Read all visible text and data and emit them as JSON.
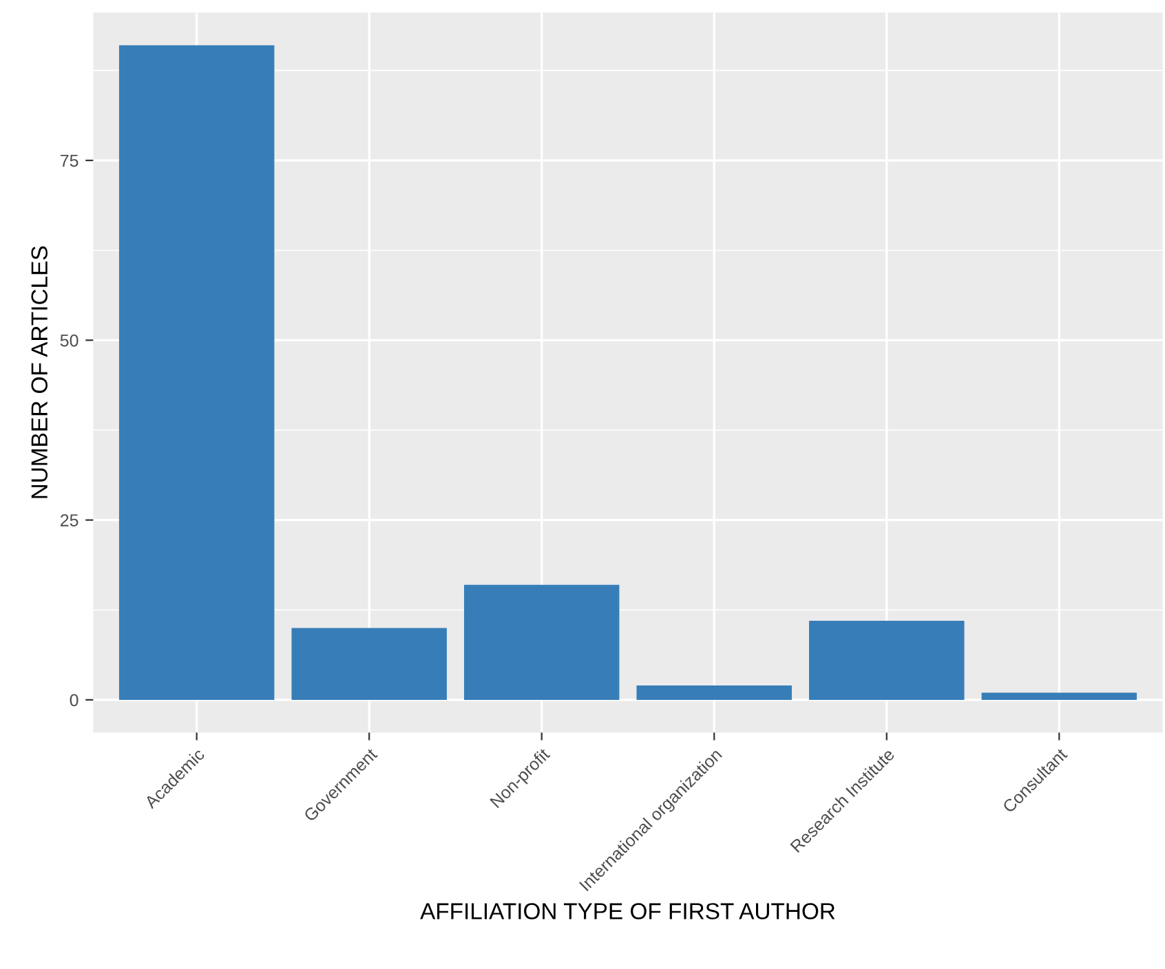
{
  "chart_data": {
    "type": "bar",
    "xlabel": "AFFILIATION TYPE OF FIRST AUTHOR",
    "ylabel": "NUMBER OF ARTICLES",
    "categories": [
      "Academic",
      "Government",
      "Non-profit",
      "International organization",
      "Research Institute",
      "Consultant"
    ],
    "values": [
      91,
      10,
      16,
      2,
      11,
      1
    ],
    "color": "#377eb8",
    "ylim": [
      -4.55,
      95.55
    ],
    "yticks": [
      0,
      25,
      50,
      75
    ],
    "grid": true
  }
}
